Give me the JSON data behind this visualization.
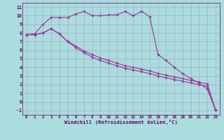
{
  "xlabel": "Windchill (Refroidissement éolien,°C)",
  "bg_color": "#aadddd",
  "grid_color": "#aaaacc",
  "line_color": "#993399",
  "xlim": [
    -0.5,
    23.5
  ],
  "ylim": [
    -1.5,
    11.5
  ],
  "xticks": [
    0,
    1,
    2,
    3,
    4,
    5,
    6,
    7,
    8,
    9,
    10,
    11,
    12,
    13,
    14,
    15,
    16,
    17,
    18,
    19,
    20,
    21,
    22,
    23
  ],
  "yticks": [
    -1,
    0,
    1,
    2,
    3,
    4,
    5,
    6,
    7,
    8,
    9,
    10,
    11
  ],
  "series": [
    {
      "x": [
        0,
        1,
        2,
        3,
        4,
        5,
        6,
        7,
        8,
        9,
        10,
        11,
        12,
        13,
        14,
        15,
        16,
        17,
        18,
        19,
        20,
        21,
        22,
        23
      ],
      "y": [
        7.8,
        7.9,
        9.0,
        9.8,
        9.8,
        9.8,
        10.2,
        10.5,
        10.0,
        10.0,
        10.1,
        10.1,
        10.5,
        10.0,
        10.5,
        9.9,
        5.5,
        4.8,
        4.0,
        3.3,
        2.7,
        2.2,
        1.5,
        -0.9
      ]
    },
    {
      "x": [
        0,
        1,
        2,
        3,
        4,
        5,
        6,
        7,
        8,
        9,
        10,
        11,
        12,
        13,
        14,
        15,
        16,
        17,
        18,
        19,
        20,
        21,
        22,
        23
      ],
      "y": [
        7.8,
        7.8,
        8.0,
        8.5,
        7.9,
        7.0,
        6.5,
        5.9,
        5.5,
        5.1,
        4.8,
        4.5,
        4.2,
        4.0,
        3.8,
        3.6,
        3.3,
        3.1,
        2.9,
        2.7,
        2.5,
        2.3,
        2.1,
        -0.9
      ]
    },
    {
      "x": [
        0,
        1,
        2,
        3,
        4,
        5,
        6,
        7,
        8,
        9,
        10,
        11,
        12,
        13,
        14,
        15,
        16,
        17,
        18,
        19,
        20,
        21,
        22,
        23
      ],
      "y": [
        7.8,
        7.8,
        8.0,
        8.5,
        7.9,
        7.0,
        6.3,
        5.7,
        5.2,
        4.8,
        4.5,
        4.2,
        3.9,
        3.7,
        3.5,
        3.3,
        3.0,
        2.8,
        2.6,
        2.4,
        2.2,
        2.0,
        1.8,
        -0.9
      ]
    }
  ]
}
